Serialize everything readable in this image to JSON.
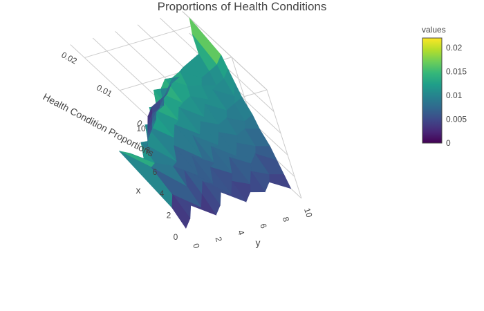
{
  "chart_data": {
    "type": "surface",
    "title": "Proportions of Health Conditions",
    "xlabel": "x",
    "ylabel": "y",
    "zlabel": "Health Condition Proportions",
    "colorscale": "viridis",
    "colorscale_stops": [
      "#440154",
      "#482878",
      "#3e4989",
      "#31688e",
      "#26828e",
      "#1f9e89",
      "#35b779",
      "#6ece58",
      "#b5de2b",
      "#fde725"
    ],
    "colorbar": {
      "title": "values",
      "range": [
        0,
        0.022
      ],
      "ticks": [
        "0",
        "0.005",
        "0.01",
        "0.015",
        "0.02"
      ]
    },
    "x_ticks": [
      "0",
      "2",
      "4",
      "6",
      "8",
      "10"
    ],
    "y_ticks": [
      "0",
      "2",
      "4",
      "6",
      "8",
      "10"
    ],
    "z_ticks": [
      "0",
      "0.01",
      "0.02"
    ],
    "x": [
      0,
      1,
      2,
      3,
      4,
      5,
      6,
      7,
      8,
      9,
      10
    ],
    "y": [
      0,
      1,
      2,
      3,
      4,
      5,
      6,
      7,
      8,
      9,
      10
    ],
    "z": [
      [
        0.001,
        0.003,
        0.006,
        0.002,
        0.004,
        0.007,
        0.003,
        0.005,
        0.004,
        0.006,
        0.003
      ],
      [
        0.004,
        0.007,
        0.002,
        0.005,
        0.008,
        0.003,
        0.006,
        0.004,
        0.007,
        0.005,
        0.004
      ],
      [
        0.018,
        0.012,
        0.005,
        0.009,
        0.004,
        0.008,
        0.005,
        0.009,
        0.006,
        0.008,
        0.005
      ],
      [
        0.014,
        0.01,
        0.008,
        0.004,
        0.009,
        0.006,
        0.01,
        0.006,
        0.009,
        0.007,
        0.006
      ],
      [
        0.009,
        0.013,
        0.006,
        0.01,
        0.005,
        0.011,
        0.007,
        0.01,
        0.008,
        0.009,
        0.008
      ],
      [
        0.008,
        0.01,
        0.014,
        0.009,
        0.012,
        0.008,
        0.011,
        0.009,
        0.01,
        0.008,
        0.009
      ],
      [
        0.006,
        0.009,
        0.011,
        0.015,
        0.01,
        0.013,
        0.009,
        0.012,
        0.009,
        0.01,
        0.011
      ],
      [
        0.005,
        0.007,
        0.009,
        0.012,
        0.016,
        0.011,
        0.012,
        0.01,
        0.012,
        0.009,
        0.012
      ],
      [
        0.004,
        0.006,
        0.008,
        0.009,
        0.013,
        0.015,
        0.012,
        0.011,
        0.01,
        0.011,
        0.013
      ],
      [
        0.003,
        0.005,
        0.006,
        0.008,
        0.01,
        0.012,
        0.013,
        0.01,
        0.011,
        0.012,
        0.014
      ],
      [
        0.002,
        0.004,
        0.005,
        0.006,
        0.008,
        0.009,
        0.011,
        0.012,
        0.013,
        0.018,
        0.022
      ]
    ],
    "grid": true,
    "legend": "right"
  }
}
